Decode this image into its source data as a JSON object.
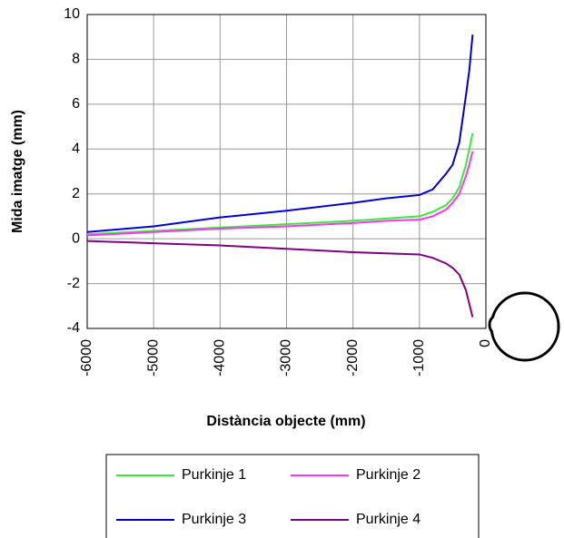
{
  "chart_data": {
    "type": "line",
    "x_label": "Distància objecte (mm)",
    "y_label": "Mida imatge (mm)",
    "x": [
      -6000,
      -5000,
      -4000,
      -3000,
      -2000,
      -1500,
      -1000,
      -800,
      -600,
      -500,
      -400,
      -300,
      -250,
      -200
    ],
    "series": [
      {
        "name": "Purkinje 1",
        "color": "#33ee33",
        "values": [
          0.2,
          0.35,
          0.5,
          0.65,
          0.8,
          0.9,
          1.0,
          1.2,
          1.5,
          1.8,
          2.3,
          3.3,
          4.0,
          4.7
        ]
      },
      {
        "name": "Purkinje 2",
        "color": "#ff33ff",
        "values": [
          0.15,
          0.3,
          0.45,
          0.55,
          0.7,
          0.8,
          0.85,
          1.0,
          1.3,
          1.6,
          2.0,
          2.8,
          3.3,
          3.9
        ]
      },
      {
        "name": "Purkinje 3",
        "color": "#0000cc",
        "values": [
          0.3,
          0.55,
          0.95,
          1.25,
          1.6,
          1.8,
          1.95,
          2.2,
          2.9,
          3.3,
          4.3,
          6.4,
          7.5,
          9.1
        ]
      },
      {
        "name": "Purkinje 4",
        "color": "#800080",
        "values": [
          -0.1,
          -0.2,
          -0.3,
          -0.45,
          -0.6,
          -0.65,
          -0.7,
          -0.85,
          -1.1,
          -1.3,
          -1.6,
          -2.3,
          -2.9,
          -3.5
        ]
      }
    ],
    "xlim": [
      -6000,
      0
    ],
    "xticks": [
      -6000,
      -5000,
      -4000,
      -3000,
      -2000,
      -1000,
      0
    ],
    "ylim": [
      -4,
      10
    ],
    "yticks": [
      -4,
      -2,
      0,
      2,
      4,
      6,
      8,
      10
    ],
    "grid": true,
    "legend": "bottom"
  }
}
